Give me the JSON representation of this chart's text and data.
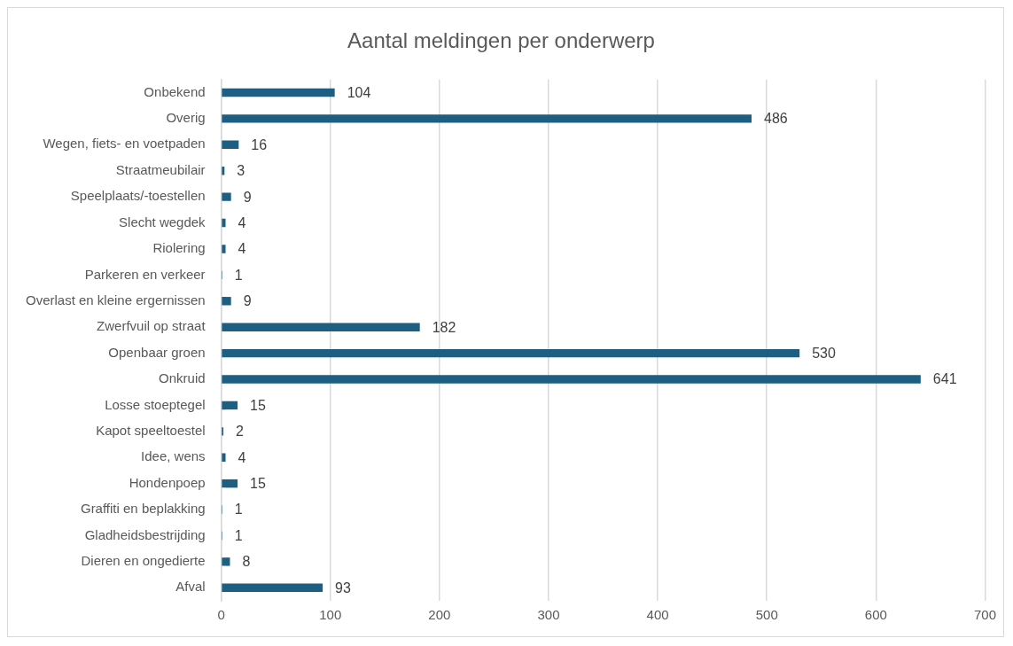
{
  "chart_data": {
    "type": "bar",
    "orientation": "horizontal",
    "title": "Aantal meldingen per onderwerp",
    "categories": [
      "Onbekend",
      "Overig",
      "Wegen, fiets- en voetpaden",
      "Straatmeubilair",
      "Speelplaats/-toestellen",
      "Slecht wegdek",
      "Riolering",
      "Parkeren en verkeer",
      "Overlast en kleine ergernissen",
      "Zwerfvuil op straat",
      "Openbaar groen",
      "Onkruid",
      "Losse stoeptegel",
      "Kapot speeltoestel",
      "Idee, wens",
      "Hondenpoep",
      "Graffiti en beplakking",
      "Gladheidsbestrijding",
      "Dieren en ongedierte",
      "Afval"
    ],
    "values": [
      104,
      486,
      16,
      3,
      9,
      4,
      4,
      1,
      9,
      182,
      530,
      641,
      15,
      2,
      4,
      15,
      1,
      1,
      8,
      93
    ],
    "color": "#1c5f82",
    "xlim": [
      0,
      700
    ],
    "xticks": [
      0,
      100,
      200,
      300,
      400,
      500,
      600,
      700
    ],
    "grid": "x",
    "data_labels": true,
    "legend": false
  }
}
